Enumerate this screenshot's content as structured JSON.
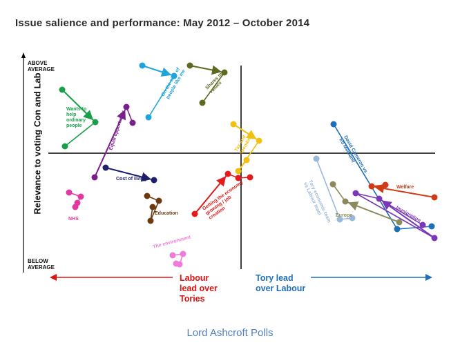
{
  "title": "Issue salience and performance: May 2012 – October 2014",
  "footer": "Lord Ashcroft Polls",
  "chart_data": {
    "type": "scatter",
    "title": "Issue salience and performance: May 2012 – October 2014",
    "ylabel": "Relevance to voting Con and Lab",
    "y_top_label": [
      "ABOVE",
      "AVERAGE"
    ],
    "y_bottom_label": [
      "BELOW",
      "AVERAGE"
    ],
    "x_left_label": [
      "Labour",
      "lead over",
      "Tories"
    ],
    "x_right_label": [
      "Tory lead",
      "over Labour"
    ],
    "series": [
      {
        "label": "Wants to help ordinary people",
        "color": "#1aa04a",
        "points": [
          [
            90,
            130
          ],
          [
            138,
            177
          ],
          [
            94,
            212
          ]
        ],
        "arrows": [
          [
            0,
            1
          ]
        ],
        "label_lines": [
          "Wants to",
          "help",
          "ordinary",
          "people"
        ],
        "label_pos": [
          96,
          160
        ],
        "label_rot": 0
      },
      {
        "label": "Equal opportunity",
        "color": "#7b1f8c",
        "points": [
          [
            137,
            257
          ],
          [
            183,
            155
          ],
          [
            192,
            178
          ]
        ],
        "arrows": [
          [
            0,
            1
          ]
        ],
        "label_lines": [
          "Equal opportunity"
        ],
        "label_pos": [
          162,
          218
        ],
        "label_rot": -72
      },
      {
        "label": "On the side of people like me",
        "color": "#1fa5d9",
        "points": [
          [
            206,
            95
          ],
          [
            252,
            110
          ],
          [
            215,
            170
          ]
        ],
        "arrows": [
          [
            0,
            1
          ]
        ],
        "label_lines": [
          "On the side of",
          "people like me"
        ],
        "label_pos": [
          237,
          140
        ],
        "label_rot": -60
      },
      {
        "label": "Shares my values",
        "color": "#5c6b20",
        "points": [
          [
            275,
            95
          ],
          [
            325,
            105
          ],
          [
            293,
            149
          ]
        ],
        "arrows": [
          [
            0,
            1
          ]
        ],
        "label_lines": [
          "Shares my",
          "values"
        ],
        "label_pos": [
          300,
          130
        ],
        "label_rot": -45
      },
      {
        "label": "Cost of living",
        "color": "#1f1f6e",
        "points": [
          [
            153,
            243
          ],
          [
            223,
            261
          ]
        ],
        "arrows": [
          [
            0,
            1
          ]
        ],
        "label_lines": [
          "Cost of living"
        ],
        "label_pos": [
          168,
          261
        ],
        "label_rot": 0
      },
      {
        "label": "NHS",
        "color": "#e03aa0",
        "points": [
          [
            100,
            279
          ],
          [
            117,
            285
          ],
          [
            109,
            300
          ],
          [
            112,
            294
          ]
        ],
        "arrows": [],
        "label_lines": [
          "NHS"
        ],
        "label_pos": [
          99,
          319
        ],
        "label_rot": 0
      },
      {
        "label": "Education",
        "color": "#6b3a10",
        "points": [
          [
            213,
            284
          ],
          [
            230,
            291
          ],
          [
            218,
            320
          ],
          [
            221,
            300
          ]
        ],
        "arrows": [],
        "label_lines": [
          "Education"
        ],
        "label_pos": [
          224,
          311
        ],
        "label_rot": 0
      },
      {
        "label": "The environment",
        "color": "#f07ad9",
        "points": [
          [
            250,
            370
          ],
          [
            265,
            368
          ],
          [
            260,
            383
          ],
          [
            255,
            382
          ]
        ],
        "arrows": [],
        "label_lines": [
          "The environment"
        ],
        "label_pos": [
          222,
          360
        ],
        "label_rot": -15
      },
      {
        "label": "Getting the economy growing / job creation",
        "color": "#e31b1b",
        "points": [
          [
            282,
            310
          ],
          [
            330,
            252
          ],
          [
            345,
            258
          ],
          [
            362,
            257
          ]
        ],
        "arrows": [
          [
            0,
            1
          ]
        ],
        "label_lines": [
          "Getting the economy",
          "growing / job",
          "creation"
        ],
        "label_pos": [
          295,
          305
        ],
        "label_rot": -35
      },
      {
        "label": "Tax and spending",
        "color": "#f2c010",
        "points": [
          [
            338,
            180
          ],
          [
            375,
            204
          ],
          [
            345,
            248
          ],
          [
            357,
            232
          ]
        ],
        "arrows": [
          [
            0,
            1
          ]
        ],
        "label_lines": [
          "Tax and",
          "spending"
        ],
        "label_pos": [
          343,
          220
        ],
        "label_rot": -60
      },
      {
        "label": "David Cameron vs Ed Miliband",
        "color": "#1f6fb8",
        "points": [
          [
            483,
            180
          ],
          [
            575,
            332
          ],
          [
            625,
            328
          ]
        ],
        "arrows": [],
        "label_lines": [
          "David Cameron vs",
          "Ed Miliband"
        ],
        "label_pos": [
          498,
          198
        ],
        "label_rot": 60
      },
      {
        "label": "Tory economic team vs Labour team",
        "color": "#9bb7d9",
        "points": [
          [
            458,
            230
          ],
          [
            492,
            318
          ],
          [
            510,
            316
          ]
        ],
        "arrows": [],
        "label_lines": [
          "Tory economic team",
          "vs Labour team"
        ],
        "label_pos": [
          447,
          262
        ],
        "label_rot": 65
      },
      {
        "label": "Europe",
        "color": "#8a8a5a",
        "points": [
          [
            482,
            267
          ],
          [
            500,
            292
          ],
          [
            578,
            322
          ]
        ],
        "arrows": [
          [
            2,
            1
          ]
        ],
        "label_lines": [
          "Europe"
        ],
        "label_pos": [
          486,
          314
        ],
        "label_rot": 0
      },
      {
        "label": "Welfare",
        "color": "#d13a16",
        "points": [
          [
            629,
            286
          ],
          [
            538,
            270
          ],
          [
            558,
            268
          ]
        ],
        "arrows": [
          [
            0,
            1
          ]
        ],
        "label_lines": [
          "Welfare"
        ],
        "label_pos": [
          574,
          273
        ],
        "label_rot": 0
      },
      {
        "label": "Immigration",
        "color": "#7a38b8",
        "points": [
          [
            629,
            345
          ],
          [
            515,
            280
          ],
          [
            549,
            288
          ],
          [
            612,
            326
          ]
        ],
        "arrows": [
          [
            0,
            2
          ]
        ],
        "label_lines": [
          "Immigration"
        ],
        "label_pos": [
          573,
          302
        ],
        "label_rot": 30
      }
    ]
  }
}
